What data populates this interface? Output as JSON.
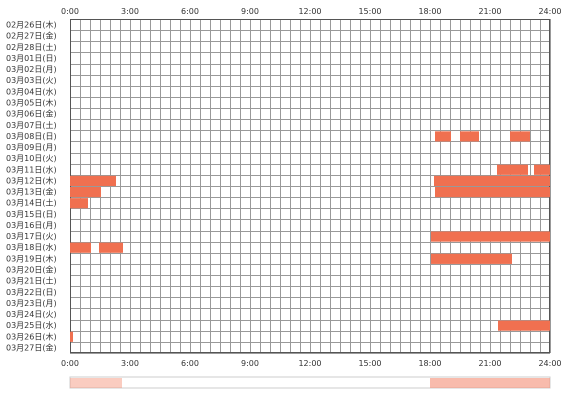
{
  "chart_data": {
    "type": "heatmap",
    "title": "",
    "xlabel": "",
    "ylabel": "",
    "xlim": [
      0,
      24
    ],
    "x_ticks": [
      "0:00",
      "3:00",
      "6:00",
      "9:00",
      "12:00",
      "15:00",
      "18:00",
      "21:00",
      "24:00"
    ],
    "grid": true,
    "grid_step_hours": 0.5,
    "colors": {
      "bar": "#f07050",
      "grid": "#999999",
      "border": "#555555",
      "summary_low": "#fbe6df",
      "summary_high": "#f48e74"
    },
    "rows": [
      {
        "label": "02月26日(木)",
        "segments": []
      },
      {
        "label": "02月27日(金)",
        "segments": []
      },
      {
        "label": "02月28日(土)",
        "segments": []
      },
      {
        "label": "03月01日(日)",
        "segments": []
      },
      {
        "label": "03月02日(月)",
        "segments": []
      },
      {
        "label": "03月03日(火)",
        "segments": []
      },
      {
        "label": "03月04日(水)",
        "segments": []
      },
      {
        "label": "03月05日(木)",
        "segments": []
      },
      {
        "label": "03月06日(金)",
        "segments": []
      },
      {
        "label": "03月07日(土)",
        "segments": []
      },
      {
        "label": "03月08日(日)",
        "segments": [
          [
            18.25,
            19.05
          ],
          [
            19.5,
            20.45
          ],
          [
            22.0,
            23.0
          ]
        ]
      },
      {
        "label": "03月09日(月)",
        "segments": []
      },
      {
        "label": "03月10日(火)",
        "segments": []
      },
      {
        "label": "03月11日(水)",
        "segments": [
          [
            21.35,
            22.9
          ],
          [
            23.2,
            24.0
          ]
        ]
      },
      {
        "label": "03月12日(木)",
        "segments": [
          [
            0.0,
            2.3
          ],
          [
            18.2,
            24.0
          ]
        ]
      },
      {
        "label": "03月13日(金)",
        "segments": [
          [
            0.0,
            1.55
          ],
          [
            18.25,
            24.0
          ]
        ]
      },
      {
        "label": "03月14日(土)",
        "segments": [
          [
            0.0,
            0.9
          ]
        ]
      },
      {
        "label": "03月15日(日)",
        "segments": []
      },
      {
        "label": "03月16日(月)",
        "segments": []
      },
      {
        "label": "03月17日(火)",
        "segments": [
          [
            18.05,
            24.0
          ]
        ]
      },
      {
        "label": "03月18日(水)",
        "segments": [
          [
            0.0,
            1.05
          ],
          [
            1.45,
            2.65
          ]
        ]
      },
      {
        "label": "03月19日(木)",
        "segments": [
          [
            18.05,
            22.1
          ]
        ]
      },
      {
        "label": "03月20日(金)",
        "segments": []
      },
      {
        "label": "03月21日(土)",
        "segments": []
      },
      {
        "label": "03月22日(日)",
        "segments": []
      },
      {
        "label": "03月23日(月)",
        "segments": []
      },
      {
        "label": "03月24日(火)",
        "segments": []
      },
      {
        "label": "03月25日(水)",
        "segments": [
          [
            21.4,
            24.0
          ]
        ]
      },
      {
        "label": "03月26日(木)",
        "segments": [
          [
            0.0,
            0.15
          ]
        ]
      },
      {
        "label": "03月27日(金)",
        "segments": []
      }
    ],
    "summary_strip": {
      "segments": [
        [
          0.0,
          2.6,
          0.45
        ],
        [
          18.0,
          24.0,
          0.6
        ]
      ]
    }
  }
}
